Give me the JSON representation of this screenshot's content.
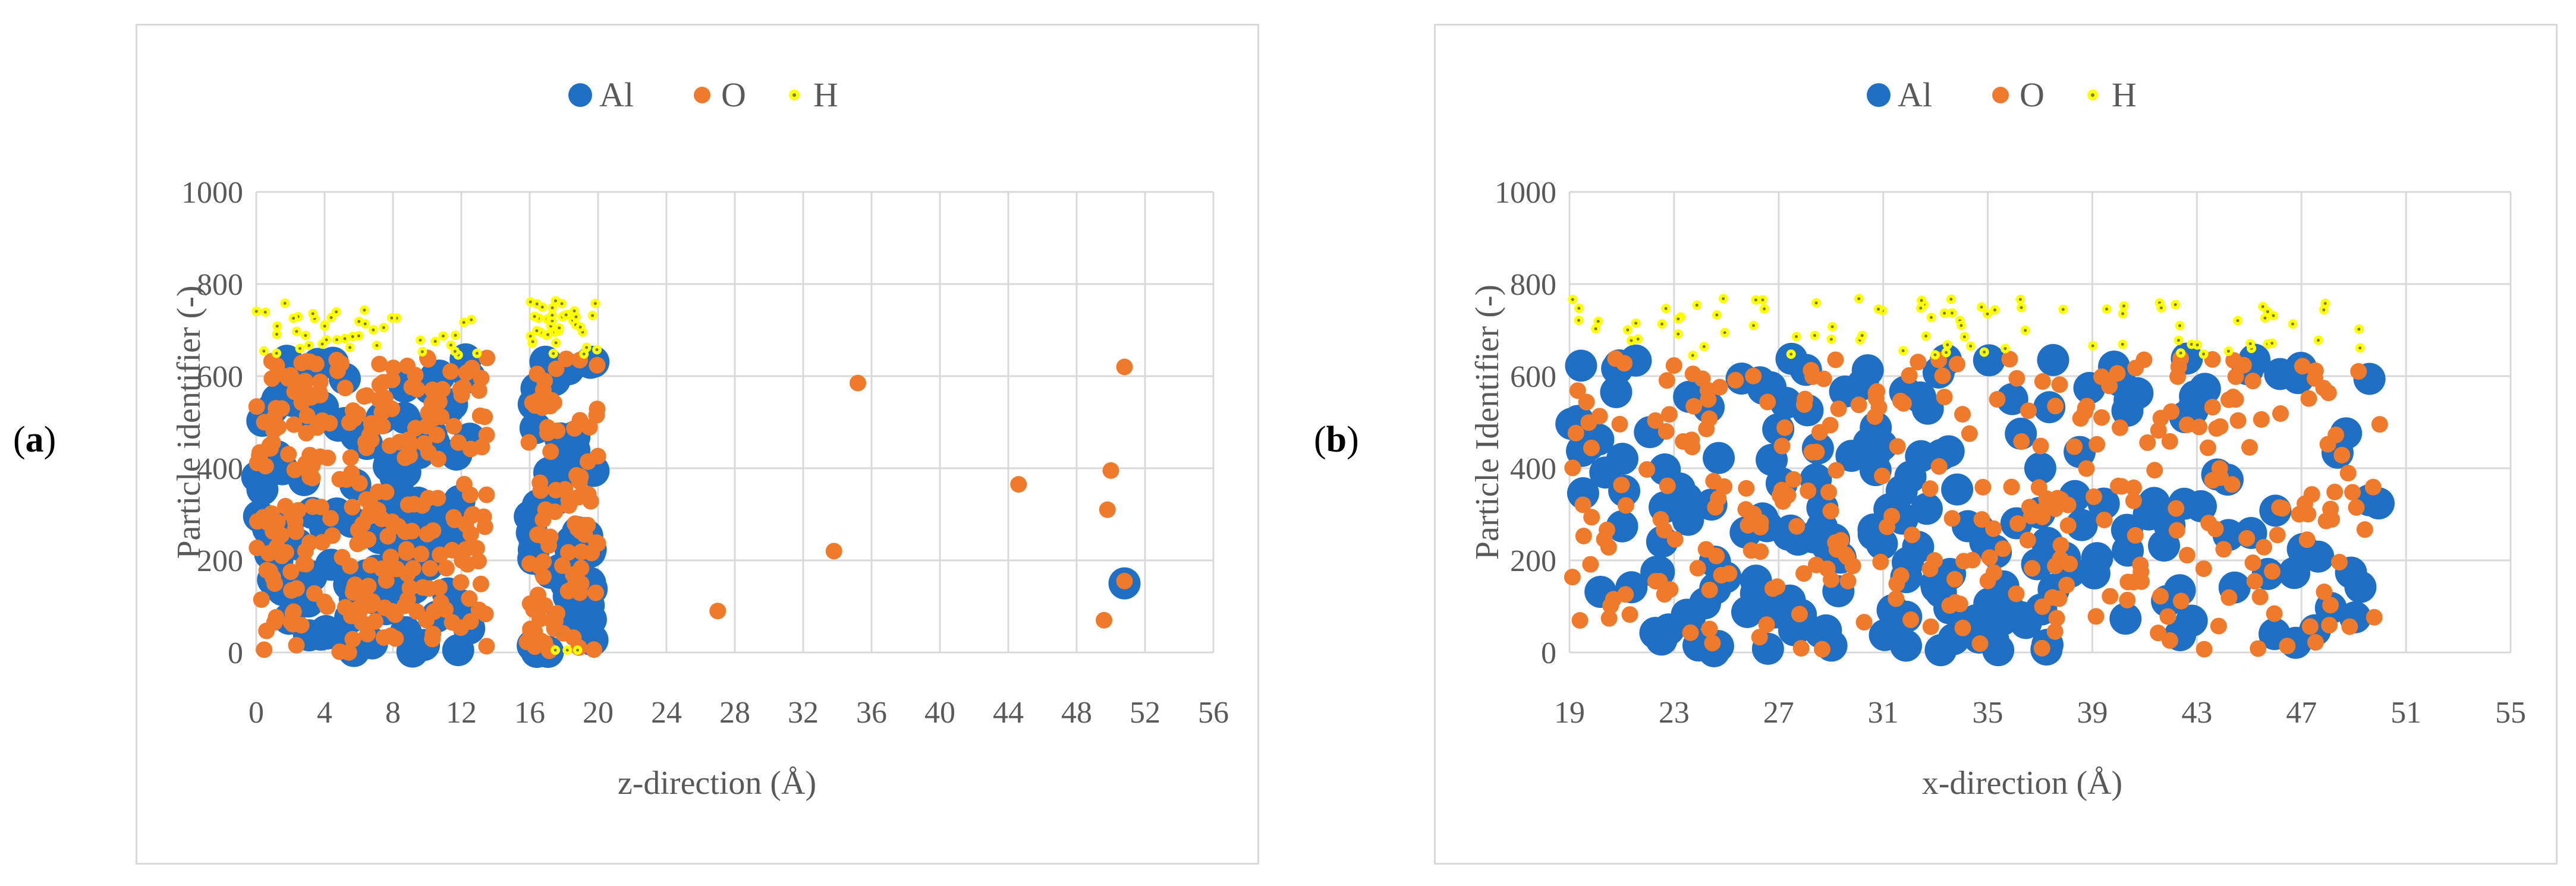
{
  "colors": {
    "Al": "#1f6fc5",
    "O": "#f07a2b",
    "H": "#ffff00",
    "H_center": "#7a7a2a",
    "grid": "#d9d9d9"
  },
  "chart_data": [
    {
      "id": "a",
      "panel_label": "a",
      "type": "scatter",
      "title": "",
      "xlabel": "z-direction (Å)",
      "ylabel": "Particle identifier (-)",
      "xlim": [
        0,
        56
      ],
      "ylim": [
        0,
        1000
      ],
      "xticks": [
        0,
        4,
        8,
        12,
        16,
        20,
        24,
        28,
        32,
        36,
        40,
        44,
        48,
        52,
        56
      ],
      "xtick_labels": [
        "0",
        "4",
        "8",
        "12",
        "16",
        "20",
        "24",
        "28",
        "32",
        "36",
        "40",
        "44",
        "48",
        "52",
        "56"
      ],
      "yticks": [
        0,
        200,
        400,
        600,
        800,
        1000
      ],
      "ytick_labels": [
        "0",
        "200",
        "400",
        "600",
        "800",
        "1000"
      ],
      "legend": [
        "Al",
        "O",
        "H"
      ],
      "legend_position": "top-center",
      "series": [
        {
          "name": "Al",
          "marker": "large-circle",
          "clusters": [
            [
              0,
              12.5,
              0,
              640,
              120
            ],
            [
              16,
              19.8,
              0,
              640,
              45
            ]
          ],
          "points": [
            [
              50.8,
              150
            ]
          ]
        },
        {
          "name": "O",
          "marker": "small-circle",
          "clusters": [
            [
              0,
              13.5,
              0,
              640,
              280
            ],
            [
              15.8,
              20,
              0,
              640,
              90
            ]
          ],
          "points": [
            [
              27,
              90
            ],
            [
              33.8,
              220
            ],
            [
              35.2,
              585
            ],
            [
              44.6,
              365
            ],
            [
              49.6,
              70
            ],
            [
              49.8,
              310
            ],
            [
              50,
              395
            ],
            [
              50.8,
              620
            ],
            [
              50.8,
              155
            ]
          ]
        },
        {
          "name": "H",
          "marker": "tiny-circle",
          "clusters": [
            [
              0,
              13,
              645,
              765,
              45
            ],
            [
              16,
              20,
              645,
              770,
              40
            ]
          ],
          "points": [
            [
              17.5,
              5
            ],
            [
              18.2,
              5
            ],
            [
              18.8,
              5
            ]
          ]
        }
      ]
    },
    {
      "id": "b",
      "panel_label": "b",
      "type": "scatter",
      "title": "",
      "xlabel": "x-direction (Å)",
      "ylabel": "Particle Identifier (-)",
      "xlim": [
        19,
        55
      ],
      "ylim": [
        0,
        1000
      ],
      "xticks": [
        19,
        23,
        27,
        31,
        35,
        39,
        43,
        47,
        51,
        55
      ],
      "xtick_labels": [
        "19",
        "23",
        "27",
        "31",
        "35",
        "39",
        "43",
        "47",
        "51",
        "55"
      ],
      "yticks": [
        0,
        200,
        400,
        600,
        800,
        1000
      ],
      "ytick_labels": [
        "0",
        "200",
        "400",
        "600",
        "800",
        "1000"
      ],
      "legend": [
        "Al",
        "O",
        "H"
      ],
      "legend_position": "top-center",
      "series": [
        {
          "name": "Al",
          "marker": "large-circle",
          "clusters": [
            [
              19,
              50,
              0,
              640,
              210
            ]
          ],
          "points": [
            [
              33.2,
              5
            ],
            [
              35.4,
              5
            ],
            [
              33.4,
              635
            ],
            [
              37.5,
              635
            ]
          ]
        },
        {
          "name": "O",
          "marker": "small-circle",
          "clusters": [
            [
              19,
              50,
              0,
              640,
              320
            ]
          ],
          "points": []
        },
        {
          "name": "H",
          "marker": "tiny-circle",
          "clusters": [
            [
              19,
              50,
              645,
              770,
              90
            ]
          ],
          "points": []
        }
      ]
    }
  ]
}
